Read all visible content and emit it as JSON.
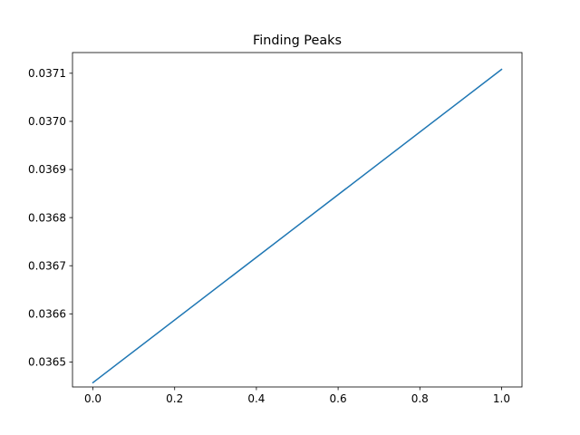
{
  "chart_data": {
    "type": "line",
    "title": "Finding Peaks",
    "xlabel": "",
    "ylabel": "",
    "xlim": [
      -0.05,
      1.05
    ],
    "ylim": [
      0.036448,
      0.037143
    ],
    "xticks": [
      0.0,
      0.2,
      0.4,
      0.6,
      0.8,
      1.0
    ],
    "xtick_labels": [
      "0.0",
      "0.2",
      "0.4",
      "0.6",
      "0.8",
      "1.0"
    ],
    "yticks": [
      0.0365,
      0.0366,
      0.0367,
      0.0368,
      0.0369,
      0.037,
      0.0371
    ],
    "ytick_labels": [
      "0.0365",
      "0.0366",
      "0.0367",
      "0.0368",
      "0.0369",
      "0.0370",
      "0.0371"
    ],
    "grid": false,
    "series": [
      {
        "x": [
          0.0,
          1.0
        ],
        "y": [
          0.036457,
          0.037108
        ],
        "color": "#1f77b4"
      }
    ]
  }
}
